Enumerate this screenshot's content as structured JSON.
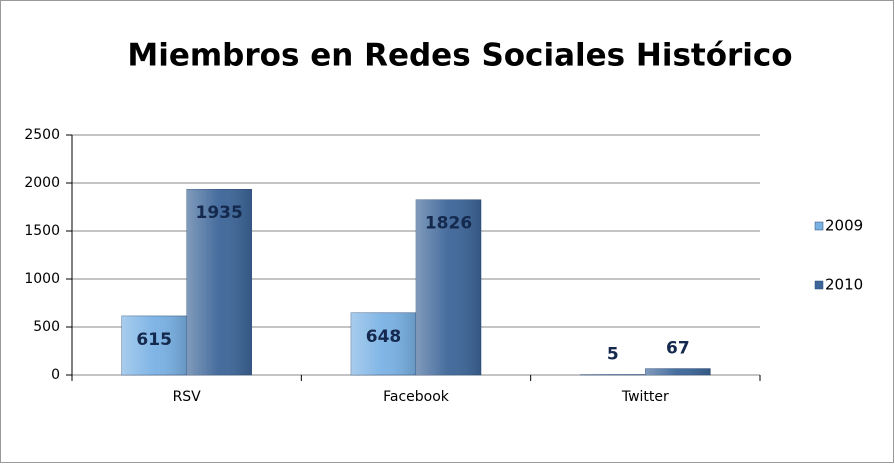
{
  "chart_data": {
    "type": "bar",
    "title": "Miembros en Redes Sociales Histórico",
    "categories": [
      "RSV",
      "Facebook",
      "Twitter"
    ],
    "series": [
      {
        "name": "2009",
        "color": "#79b1e4",
        "values": [
          615,
          648,
          5
        ]
      },
      {
        "name": "2010",
        "color": "#3c6598",
        "values": [
          1935,
          1826,
          67
        ]
      }
    ],
    "ylim": [
      0,
      2500
    ],
    "yticks": [
      0,
      500,
      1000,
      1500,
      2000,
      2500
    ],
    "grid": true,
    "legend": "right"
  }
}
